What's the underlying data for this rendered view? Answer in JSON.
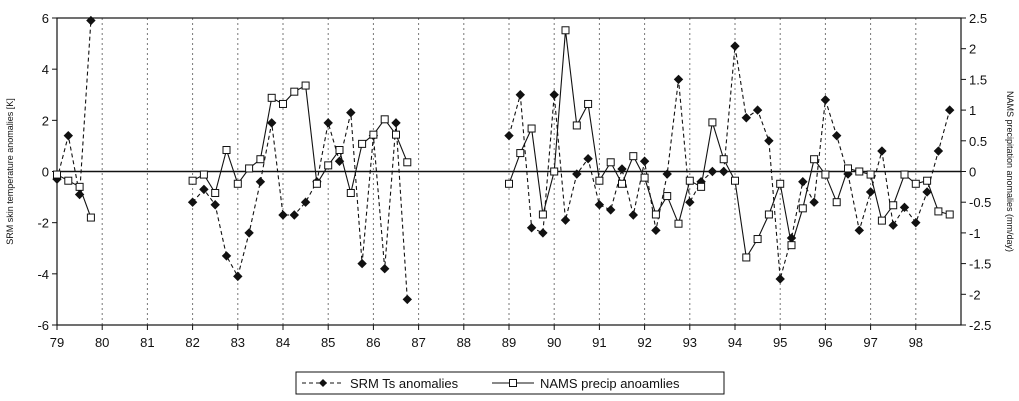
{
  "chart_data": {
    "type": "line",
    "x_tick_labels": [
      "79",
      "80",
      "81",
      "82",
      "83",
      "84",
      "85",
      "86",
      "87",
      "88",
      "89",
      "90",
      "91",
      "92",
      "93",
      "94",
      "95",
      "96",
      "97",
      "98"
    ],
    "xlim": [
      79,
      99
    ],
    "ylabel": "SRM skin temperature anomalies [K]",
    "ylim": [
      -6,
      6
    ],
    "y_ticks": [
      -6,
      -4,
      -2,
      0,
      2,
      4,
      6
    ],
    "y2label": "NAMS precipitation anomalies (mm/day)",
    "y2lim": [
      -2.5,
      2.5
    ],
    "y2_ticks": [
      -2.5,
      -2,
      -1.5,
      -1,
      -0.5,
      0,
      0.5,
      1,
      1.5,
      2,
      2.5
    ],
    "grid": {
      "vertical_dashed": true,
      "horizontal_zero_line": true
    },
    "legend": {
      "position": "bottom-center"
    },
    "series": [
      {
        "name": "SRM Ts anomalies",
        "axis": "left",
        "color": "#111111",
        "line_style": "dashed",
        "marker": "diamond-filled",
        "segments": [
          [
            [
              79.0,
              -0.3
            ],
            [
              79.25,
              1.4
            ],
            [
              79.5,
              -0.9
            ],
            [
              79.75,
              5.9
            ]
          ],
          [
            [
              82.0,
              -1.2
            ],
            [
              82.25,
              -0.7
            ],
            [
              82.5,
              -1.3
            ],
            [
              82.75,
              -3.3
            ],
            [
              83.0,
              -4.1
            ],
            [
              83.25,
              -2.4
            ],
            [
              83.5,
              -0.4
            ],
            [
              83.75,
              1.9
            ],
            [
              84.0,
              -1.7
            ],
            [
              84.25,
              -1.7
            ],
            [
              84.5,
              -1.2
            ],
            [
              84.75,
              -0.4
            ],
            [
              85.0,
              1.9
            ],
            [
              85.25,
              0.4
            ],
            [
              85.5,
              2.3
            ],
            [
              85.75,
              -3.6
            ],
            [
              86.0,
              1.4
            ],
            [
              86.25,
              -3.8
            ],
            [
              86.5,
              1.9
            ],
            [
              86.75,
              -5.0
            ]
          ],
          [
            [
              89.0,
              1.4
            ],
            [
              89.25,
              3.0
            ],
            [
              89.5,
              -2.2
            ],
            [
              89.75,
              -2.4
            ],
            [
              90.0,
              3.0
            ],
            [
              90.25,
              -1.9
            ],
            [
              90.5,
              -0.1
            ],
            [
              90.75,
              0.5
            ],
            [
              91.0,
              -1.3
            ],
            [
              91.25,
              -1.5
            ],
            [
              91.5,
              0.1
            ],
            [
              91.75,
              -1.7
            ],
            [
              92.0,
              0.4
            ],
            [
              92.25,
              -2.3
            ],
            [
              92.5,
              -0.1
            ],
            [
              92.75,
              3.6
            ],
            [
              93.0,
              -1.2
            ],
            [
              93.25,
              -0.4
            ],
            [
              93.5,
              0.0
            ],
            [
              93.75,
              0.0
            ],
            [
              94.0,
              4.9
            ],
            [
              94.25,
              2.1
            ],
            [
              94.5,
              2.4
            ],
            [
              94.75,
              1.2
            ],
            [
              95.0,
              -4.2
            ],
            [
              95.25,
              -2.6
            ],
            [
              95.5,
              -0.4
            ],
            [
              95.75,
              -1.2
            ],
            [
              96.0,
              2.8
            ],
            [
              96.25,
              1.4
            ],
            [
              96.5,
              -0.1
            ],
            [
              96.75,
              -2.3
            ],
            [
              97.0,
              -0.8
            ],
            [
              97.25,
              0.8
            ],
            [
              97.5,
              -2.1
            ],
            [
              97.75,
              -1.4
            ],
            [
              98.0,
              -2.0
            ],
            [
              98.25,
              -0.8
            ],
            [
              98.5,
              0.8
            ],
            [
              98.75,
              2.4
            ]
          ]
        ]
      },
      {
        "name": "NAMS precip anoamlies",
        "axis": "right",
        "color": "#111111",
        "line_style": "solid",
        "marker": "square-open",
        "segments": [
          [
            [
              79.0,
              -0.05
            ],
            [
              79.25,
              -0.15
            ],
            [
              79.5,
              -0.25
            ],
            [
              79.75,
              -0.75
            ]
          ],
          [
            [
              82.0,
              -0.15
            ],
            [
              82.25,
              -0.05
            ],
            [
              82.5,
              -0.35
            ],
            [
              82.75,
              0.35
            ],
            [
              83.0,
              -0.2
            ],
            [
              83.25,
              0.05
            ],
            [
              83.5,
              0.2
            ],
            [
              83.75,
              1.2
            ],
            [
              84.0,
              1.1
            ],
            [
              84.25,
              1.3
            ],
            [
              84.5,
              1.4
            ],
            [
              84.75,
              -0.2
            ],
            [
              85.0,
              0.1
            ],
            [
              85.25,
              0.35
            ],
            [
              85.5,
              -0.35
            ],
            [
              85.75,
              0.45
            ],
            [
              86.0,
              0.6
            ],
            [
              86.25,
              0.85
            ],
            [
              86.5,
              0.6
            ],
            [
              86.75,
              0.15
            ]
          ],
          [
            [
              89.0,
              -0.2
            ],
            [
              89.25,
              0.3
            ],
            [
              89.5,
              0.7
            ],
            [
              89.75,
              -0.7
            ],
            [
              90.0,
              0.0
            ],
            [
              90.25,
              2.3
            ],
            [
              90.5,
              0.75
            ],
            [
              90.75,
              1.1
            ],
            [
              91.0,
              -0.15
            ],
            [
              91.25,
              0.15
            ],
            [
              91.5,
              -0.2
            ],
            [
              91.75,
              0.25
            ],
            [
              92.0,
              -0.1
            ],
            [
              92.25,
              -0.7
            ],
            [
              92.5,
              -0.4
            ],
            [
              92.75,
              -0.85
            ],
            [
              93.0,
              -0.15
            ],
            [
              93.25,
              -0.25
            ],
            [
              93.5,
              0.8
            ],
            [
              93.75,
              0.2
            ],
            [
              94.0,
              -0.15
            ],
            [
              94.25,
              -1.4
            ],
            [
              94.5,
              -1.1
            ],
            [
              94.75,
              -0.7
            ],
            [
              95.0,
              -0.2
            ],
            [
              95.25,
              -1.2
            ],
            [
              95.5,
              -0.6
            ],
            [
              95.75,
              0.2
            ],
            [
              96.0,
              -0.05
            ],
            [
              96.25,
              -0.5
            ],
            [
              96.5,
              0.05
            ],
            [
              96.75,
              0.0
            ],
            [
              97.0,
              -0.05
            ],
            [
              97.25,
              -0.8
            ],
            [
              97.5,
              -0.55
            ],
            [
              97.75,
              -0.05
            ],
            [
              98.0,
              -0.2
            ],
            [
              98.25,
              -0.15
            ],
            [
              98.5,
              -0.65
            ],
            [
              98.75,
              -0.7
            ]
          ]
        ]
      }
    ]
  }
}
